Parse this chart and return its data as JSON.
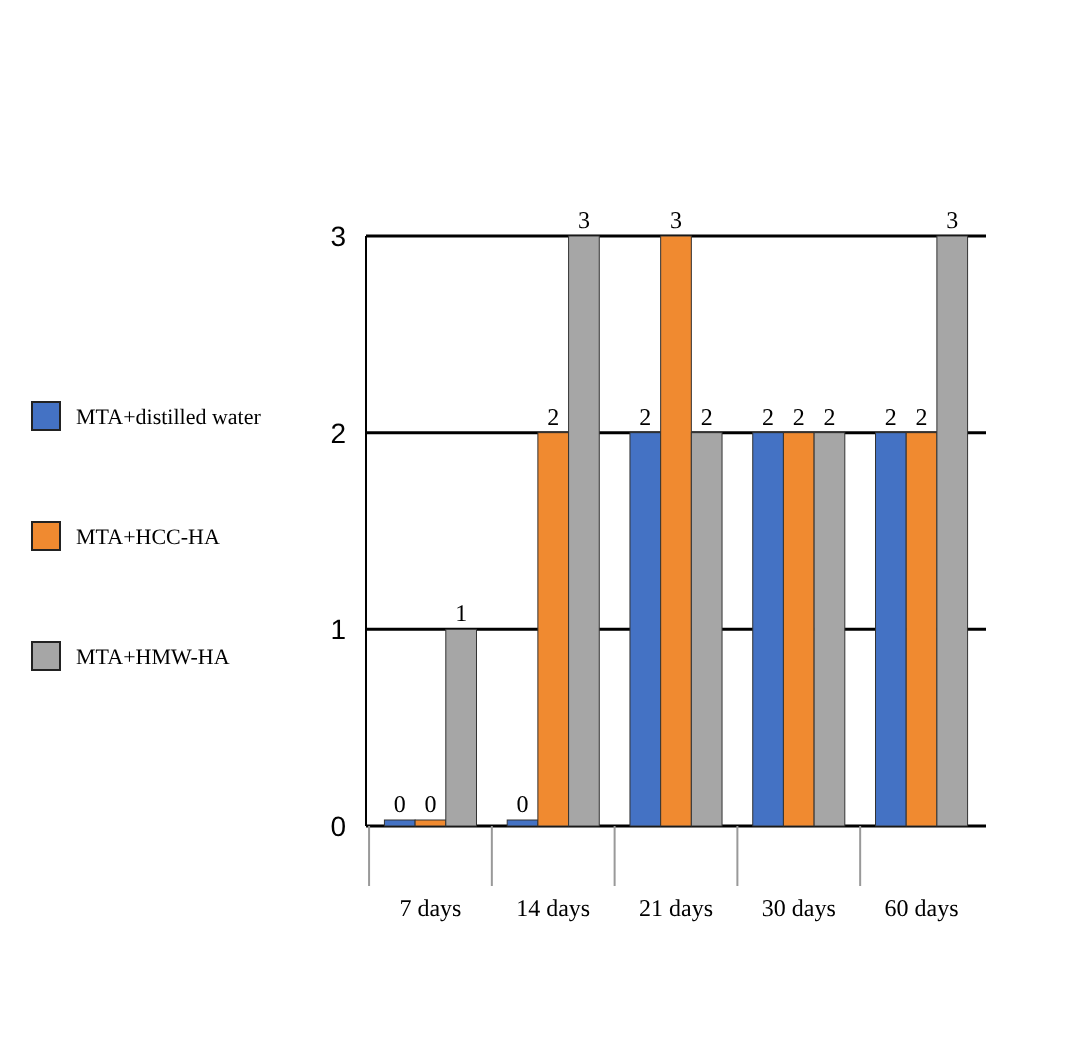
{
  "chart_data": {
    "type": "bar",
    "categories": [
      "7 days",
      "14 days",
      "21 days",
      "30 days",
      "60 days"
    ],
    "series": [
      {
        "name": "MTA+distilled water",
        "color": "#4472c4",
        "values": [
          0,
          0,
          2,
          2,
          2
        ]
      },
      {
        "name": "MTA+HCC-HA",
        "color": "#f08a30",
        "values": [
          0,
          2,
          3,
          2,
          2
        ]
      },
      {
        "name": "MTA+HMW-HA",
        "color": "#a6a6a6",
        "values": [
          1,
          3,
          2,
          2,
          3
        ]
      }
    ],
    "ylim": [
      0,
      3
    ],
    "yticks": [
      0,
      1,
      2,
      3
    ],
    "grid": "y",
    "legend": "left",
    "data_labels": true
  }
}
